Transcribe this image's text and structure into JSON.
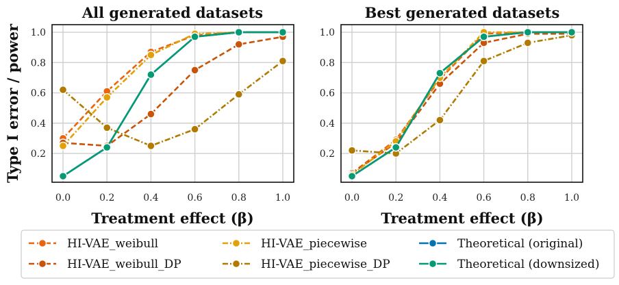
{
  "chart_data": [
    {
      "type": "line",
      "title": "All generated datasets",
      "xlabel": "Treatment effect (β)",
      "ylabel": "Type I error / power",
      "x": [
        0.0,
        0.2,
        0.4,
        0.6,
        0.8,
        1.0
      ],
      "xticks": [
        "0.0",
        "0.2",
        "0.4",
        "0.6",
        "0.8",
        "1.0"
      ],
      "yticks": [
        "0.2",
        "0.4",
        "0.6",
        "0.8",
        "1.0"
      ],
      "xlim": [
        -0.05,
        1.05
      ],
      "ylim": [
        0.01,
        1.05
      ],
      "series": [
        {
          "name": "HI-VAE_weibull",
          "values": [
            0.3,
            0.61,
            0.87,
            0.98,
            1.0,
            1.0
          ]
        },
        {
          "name": "HI-VAE_weibull_DP",
          "values": [
            0.27,
            0.25,
            0.46,
            0.75,
            0.92,
            0.97
          ]
        },
        {
          "name": "HI-VAE_piecewise",
          "values": [
            0.25,
            0.57,
            0.85,
            0.99,
            1.0,
            1.0
          ]
        },
        {
          "name": "HI-VAE_piecewise_DP",
          "values": [
            0.62,
            0.37,
            0.25,
            0.36,
            0.59,
            0.81
          ]
        },
        {
          "name": "Theoretical (original)",
          "values": [
            0.05,
            0.24,
            0.72,
            0.97,
            1.0,
            1.0
          ]
        },
        {
          "name": "Theoretical (downsized)",
          "values": [
            0.05,
            0.24,
            0.72,
            0.97,
            1.0,
            1.0
          ]
        }
      ]
    },
    {
      "type": "line",
      "title": "Best generated datasets",
      "xlabel": "Treatment effect (β)",
      "ylabel": "",
      "x": [
        0.0,
        0.2,
        0.4,
        0.6,
        0.8,
        1.0
      ],
      "xticks": [
        "0.0",
        "0.2",
        "0.4",
        "0.6",
        "0.8",
        "1.0"
      ],
      "yticks": [
        "0.2",
        "0.4",
        "0.6",
        "0.8",
        "1.0"
      ],
      "xlim": [
        -0.05,
        1.05
      ],
      "ylim": [
        0.01,
        1.05
      ],
      "series": [
        {
          "name": "HI-VAE_weibull",
          "values": [
            0.07,
            0.29,
            0.69,
            0.99,
            1.0,
            1.0
          ]
        },
        {
          "name": "HI-VAE_weibull_DP",
          "values": [
            0.07,
            0.27,
            0.66,
            0.93,
            0.99,
            0.99
          ]
        },
        {
          "name": "HI-VAE_piecewise",
          "values": [
            0.06,
            0.28,
            0.7,
            1.0,
            1.0,
            1.0
          ]
        },
        {
          "name": "HI-VAE_piecewise_DP",
          "values": [
            0.22,
            0.2,
            0.42,
            0.81,
            0.93,
            0.98
          ]
        },
        {
          "name": "Theoretical (original)",
          "values": [
            0.05,
            0.24,
            0.73,
            0.97,
            1.0,
            1.0
          ]
        },
        {
          "name": "Theoretical (downsized)",
          "values": [
            0.05,
            0.24,
            0.73,
            0.97,
            1.0,
            1.0
          ]
        }
      ]
    }
  ],
  "legend": [
    {
      "name": "HI-VAE_weibull",
      "color": "#e8650f",
      "dash": "dashed"
    },
    {
      "name": "HI-VAE_weibull_DP",
      "color": "#c8540a",
      "dash": "dashed"
    },
    {
      "name": "HI-VAE_piecewise",
      "color": "#e3a008",
      "dash": "dashdot"
    },
    {
      "name": "HI-VAE_piecewise_DP",
      "color": "#b07b00",
      "dash": "dashdot"
    },
    {
      "name": "Theoretical (original)",
      "color": "#0673b0",
      "dash": "solid"
    },
    {
      "name": "Theoretical (downsized)",
      "color": "#069a74",
      "dash": "solid"
    }
  ]
}
